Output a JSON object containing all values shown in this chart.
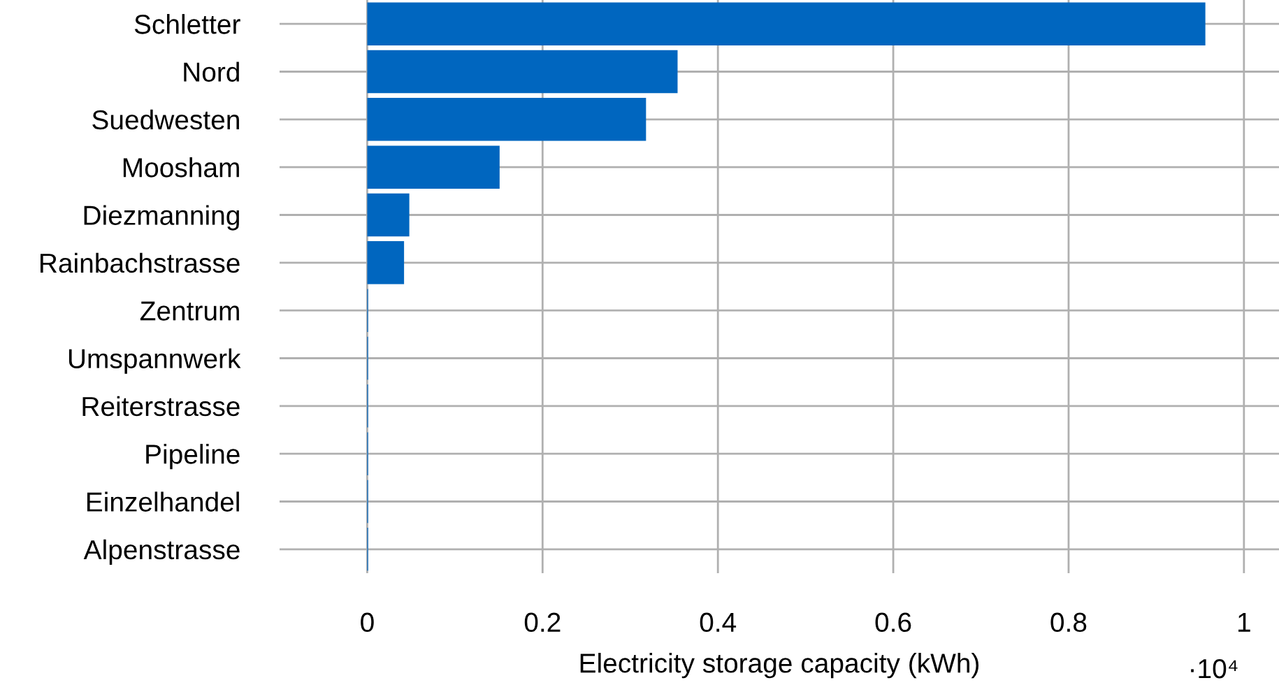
{
  "chart_data": {
    "type": "bar",
    "orientation": "horizontal",
    "xlabel": "Electricity storage capacity (kWh)",
    "categories": [
      "Schletter",
      "Nord",
      "Suedwesten",
      "Moosham",
      "Diezmanning",
      "Rainbachstrasse",
      "Zentrum",
      "Umspannwerk",
      "Reiterstrasse",
      "Pipeline",
      "Einzelhandel",
      "Alpenstrasse"
    ],
    "values": [
      0.956,
      0.354,
      0.318,
      0.151,
      0.048,
      0.042,
      0.001,
      0.001,
      0.001,
      0.001,
      0.001,
      0.001
    ],
    "color": "#0066bf",
    "xlim": [
      -0.1,
      1.04
    ],
    "xticks": [
      0,
      0.2,
      0.4,
      0.6,
      0.8,
      1
    ],
    "grid": true,
    "annotations": [
      "·10⁴"
    ]
  }
}
